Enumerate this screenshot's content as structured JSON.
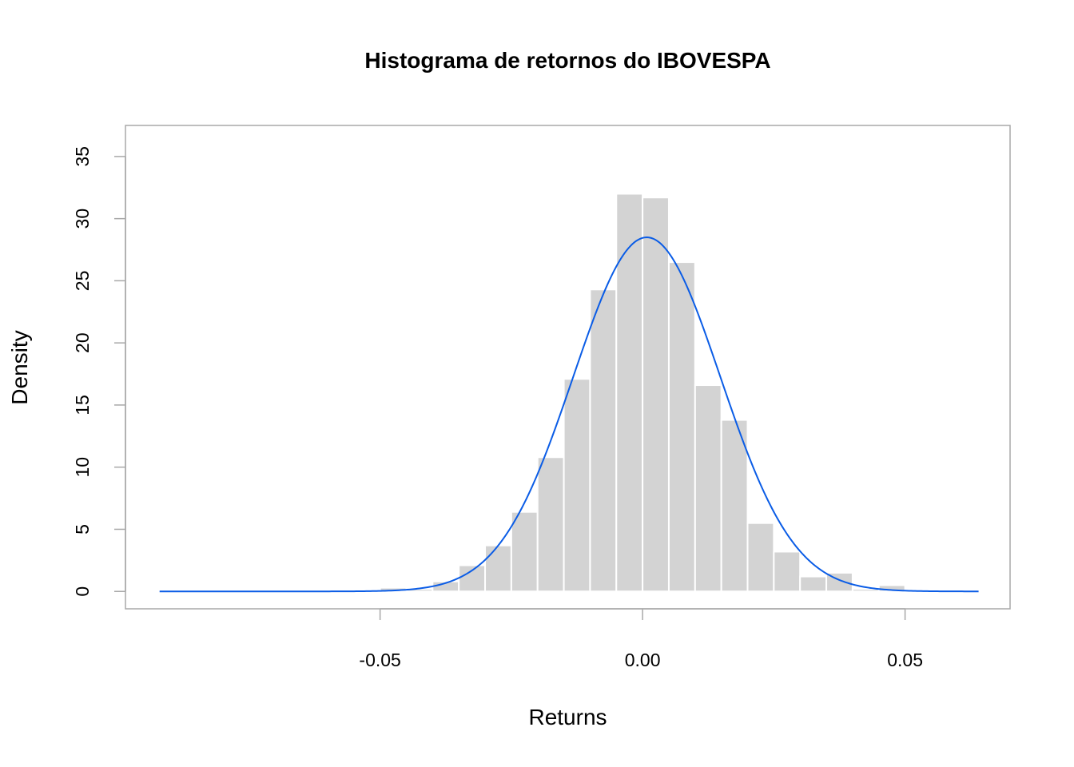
{
  "chart_data": {
    "type": "bar",
    "title": "Histograma de retornos do IBOVESPA",
    "xlabel": "Returns",
    "ylabel": "Density",
    "xlim": [
      -0.0985,
      0.07
    ],
    "ylim": [
      -1.4,
      37.5
    ],
    "x_ticks": [
      -0.05,
      0.0,
      0.05
    ],
    "x_tick_labels": [
      "-0.05",
      "0.00",
      "0.05"
    ],
    "y_ticks": [
      0,
      5,
      10,
      15,
      20,
      25,
      30,
      35
    ],
    "y_tick_labels": [
      "0",
      "5",
      "10",
      "15",
      "20",
      "25",
      "30",
      "35"
    ],
    "bar_color": "#d3d3d3",
    "bar_border": "#ffffff",
    "curve_color": "#0a5ce6",
    "frame_color": "#a8a8a8",
    "bins": [
      {
        "x0": -0.05,
        "x1": -0.045,
        "density": 0.3
      },
      {
        "x0": -0.045,
        "x1": -0.04,
        "density": 0.2
      },
      {
        "x0": -0.04,
        "x1": -0.035,
        "density": 0.8
      },
      {
        "x0": -0.035,
        "x1": -0.03,
        "density": 2.1
      },
      {
        "x0": -0.03,
        "x1": -0.025,
        "density": 3.7
      },
      {
        "x0": -0.025,
        "x1": -0.02,
        "density": 6.4
      },
      {
        "x0": -0.02,
        "x1": -0.015,
        "density": 10.8
      },
      {
        "x0": -0.015,
        "x1": -0.01,
        "density": 17.1
      },
      {
        "x0": -0.01,
        "x1": -0.005,
        "density": 24.3
      },
      {
        "x0": -0.005,
        "x1": 0.0,
        "density": 32.0
      },
      {
        "x0": 0.0,
        "x1": 0.005,
        "density": 31.7
      },
      {
        "x0": 0.005,
        "x1": 0.01,
        "density": 26.5
      },
      {
        "x0": 0.01,
        "x1": 0.015,
        "density": 16.6
      },
      {
        "x0": 0.015,
        "x1": 0.02,
        "density": 13.8
      },
      {
        "x0": 0.02,
        "x1": 0.025,
        "density": 5.5
      },
      {
        "x0": 0.025,
        "x1": 0.03,
        "density": 3.2
      },
      {
        "x0": 0.03,
        "x1": 0.035,
        "density": 1.2
      },
      {
        "x0": 0.035,
        "x1": 0.04,
        "density": 1.5
      },
      {
        "x0": 0.04,
        "x1": 0.045,
        "density": 0.2
      },
      {
        "x0": 0.045,
        "x1": 0.05,
        "density": 0.5
      }
    ],
    "normal_curve": {
      "mean": 0.0008,
      "sd": 0.014,
      "x_from": -0.092,
      "x_to": 0.064
    }
  }
}
